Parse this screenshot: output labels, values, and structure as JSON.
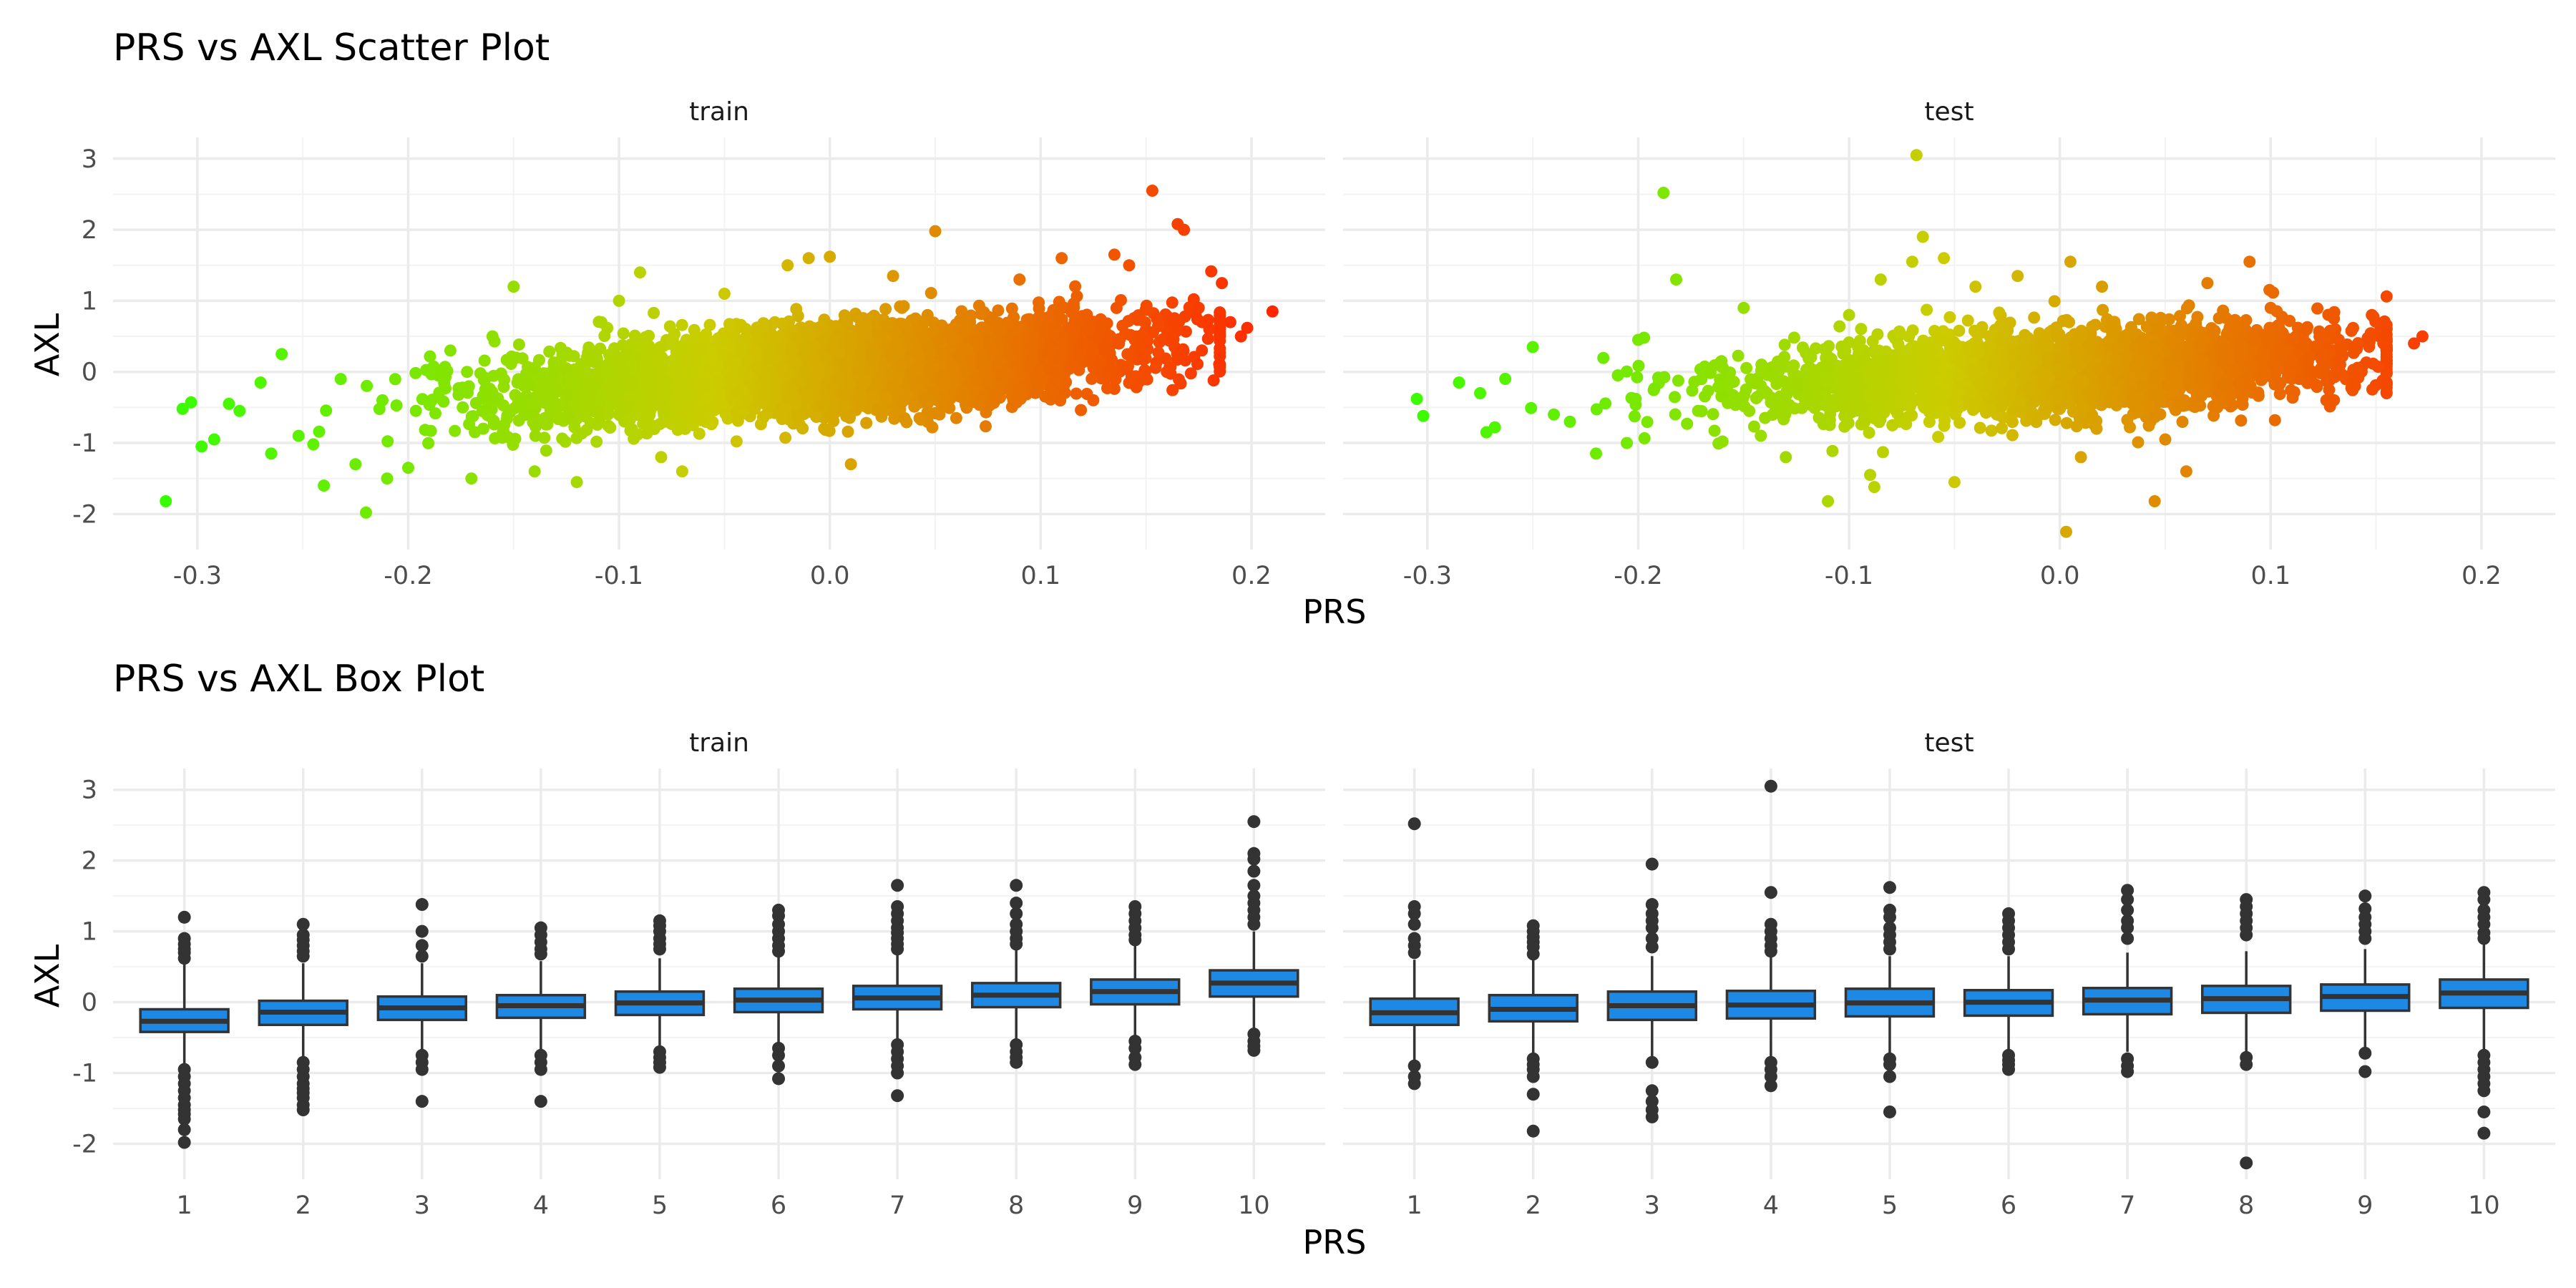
{
  "chart_data": [
    {
      "type": "scatter",
      "title": "PRS vs AXL Scatter Plot",
      "xlabel": "PRS",
      "ylabel": "AXL",
      "xlim": [
        -0.34,
        0.235
      ],
      "ylim": [
        -2.5,
        3.3
      ],
      "xticks": [
        -0.3,
        -0.2,
        -0.1,
        0.0,
        0.1,
        0.2
      ],
      "xtick_labels": [
        "-0.3",
        "-0.2",
        "-0.1",
        "0.0",
        "0.1",
        "0.2"
      ],
      "yticks": [
        -2,
        -1,
        0,
        1,
        2,
        3
      ],
      "ytick_labels": [
        "-2",
        "-1",
        "0",
        "1",
        "2",
        "3"
      ],
      "color_scale": {
        "low": "#33ff00",
        "mid": "#cccc00",
        "high": "#ff2600",
        "mapped_to": "PRS"
      },
      "grid": true,
      "facets": [
        {
          "label": "train",
          "trend": {
            "intercept": 0.02,
            "slope": 2.4
          },
          "points": [
            [
              -0.315,
              -1.82
            ],
            [
              -0.307,
              -0.52
            ],
            [
              -0.303,
              -0.43
            ],
            [
              -0.298,
              -1.05
            ],
            [
              -0.292,
              -0.95
            ],
            [
              -0.285,
              -0.45
            ],
            [
              -0.28,
              -0.55
            ],
            [
              -0.27,
              -0.15
            ],
            [
              -0.265,
              -1.15
            ],
            [
              -0.26,
              0.25
            ],
            [
              -0.252,
              -0.9
            ],
            [
              -0.245,
              -1.02
            ],
            [
              -0.24,
              -1.6
            ],
            [
              -0.232,
              -0.1
            ],
            [
              -0.225,
              -1.3
            ],
            [
              -0.22,
              -1.98
            ],
            [
              -0.21,
              -1.5
            ],
            [
              -0.2,
              -1.35
            ],
            [
              -0.18,
              0.3
            ],
            [
              -0.17,
              -1.5
            ],
            [
              -0.16,
              0.5
            ],
            [
              -0.15,
              1.2
            ],
            [
              -0.14,
              -1.4
            ],
            [
              -0.12,
              -1.55
            ],
            [
              -0.1,
              1.0
            ],
            [
              -0.09,
              1.4
            ],
            [
              -0.08,
              -1.2
            ],
            [
              -0.07,
              -1.4
            ],
            [
              -0.05,
              1.1
            ],
            [
              -0.02,
              1.5
            ],
            [
              -0.01,
              1.6
            ],
            [
              0.0,
              1.62
            ],
            [
              0.01,
              -1.3
            ],
            [
              0.03,
              1.35
            ],
            [
              0.05,
              1.98
            ],
            [
              0.06,
              -0.65
            ],
            [
              0.09,
              1.3
            ],
            [
              0.11,
              1.6
            ],
            [
              0.125,
              -0.4
            ],
            [
              0.135,
              1.65
            ],
            [
              0.142,
              1.5
            ],
            [
              0.153,
              2.55
            ],
            [
              0.165,
              2.08
            ],
            [
              0.168,
              2.0
            ],
            [
              0.175,
              0.9
            ],
            [
              0.18,
              0.6
            ],
            [
              0.186,
              1.25
            ],
            [
              0.19,
              0.7
            ],
            [
              0.195,
              0.5
            ],
            [
              0.198,
              0.62
            ],
            [
              0.21,
              0.85
            ]
          ]
        },
        {
          "label": "test",
          "trend": {
            "intercept": 0.01,
            "slope": 1.6
          },
          "points": [
            [
              -0.305,
              -0.38
            ],
            [
              -0.302,
              -0.62
            ],
            [
              -0.285,
              -0.15
            ],
            [
              -0.275,
              -0.3
            ],
            [
              -0.272,
              -0.85
            ],
            [
              -0.268,
              -0.78
            ],
            [
              -0.25,
              0.35
            ],
            [
              -0.24,
              -0.6
            ],
            [
              -0.22,
              -1.15
            ],
            [
              -0.2,
              0.45
            ],
            [
              -0.188,
              2.52
            ],
            [
              -0.182,
              1.3
            ],
            [
              -0.16,
              -0.98
            ],
            [
              -0.15,
              0.9
            ],
            [
              -0.13,
              -1.2
            ],
            [
              -0.11,
              -1.82
            ],
            [
              -0.1,
              0.8
            ],
            [
              -0.09,
              -1.45
            ],
            [
              -0.088,
              -1.62
            ],
            [
              -0.085,
              1.3
            ],
            [
              -0.07,
              1.55
            ],
            [
              -0.068,
              3.05
            ],
            [
              -0.065,
              1.9
            ],
            [
              -0.055,
              1.6
            ],
            [
              -0.05,
              -1.55
            ],
            [
              -0.04,
              1.2
            ],
            [
              -0.02,
              1.35
            ],
            [
              0.005,
              1.55
            ],
            [
              0.01,
              -1.2
            ],
            [
              0.003,
              -2.25
            ],
            [
              0.02,
              1.2
            ],
            [
              0.045,
              -1.82
            ],
            [
              0.05,
              -0.95
            ],
            [
              0.06,
              -1.4
            ],
            [
              0.07,
              1.25
            ],
            [
              0.09,
              1.55
            ],
            [
              0.1,
              0.9
            ],
            [
              0.13,
              0.75
            ],
            [
              0.14,
              -0.2
            ],
            [
              0.148,
              0.8
            ],
            [
              0.168,
              0.4
            ],
            [
              0.172,
              0.5
            ]
          ]
        }
      ]
    },
    {
      "type": "box",
      "title": "PRS vs AXL Box Plot",
      "xlabel": "PRS",
      "ylabel": "AXL",
      "categories": [
        "1",
        "2",
        "3",
        "4",
        "5",
        "6",
        "7",
        "8",
        "9",
        "10"
      ],
      "ylim": [
        -2.5,
        3.3
      ],
      "yticks": [
        -2,
        -1,
        0,
        1,
        2,
        3
      ],
      "ytick_labels": [
        "-2",
        "-1",
        "0",
        "1",
        "2",
        "3"
      ],
      "fill": "#1e88e5",
      "grid": true,
      "facets": [
        {
          "label": "train",
          "boxes": [
            {
              "q1": -0.42,
              "median": -0.27,
              "q3": -0.1,
              "lo": -0.88,
              "hi": 0.55,
              "outliers": [
                1.2,
                0.9,
                0.82,
                0.75,
                0.7,
                0.62,
                -0.95,
                -1.05,
                -1.15,
                -1.25,
                -1.35,
                -1.45,
                -1.52,
                -1.58,
                -1.65,
                -1.8,
                -1.98
              ]
            },
            {
              "q1": -0.32,
              "median": -0.14,
              "q3": 0.02,
              "lo": -0.78,
              "hi": 0.55,
              "outliers": [
                1.1,
                0.95,
                0.88,
                0.8,
                0.72,
                0.65,
                -0.85,
                -0.95,
                -1.05,
                -1.15,
                -1.22,
                -1.28,
                -1.35,
                -1.45,
                -1.52
              ]
            },
            {
              "q1": -0.25,
              "median": -0.08,
              "q3": 0.08,
              "lo": -0.7,
              "hi": 0.55,
              "outliers": [
                1.38,
                1.0,
                0.8,
                0.65,
                -0.75,
                -0.85,
                -0.95,
                -1.4
              ]
            },
            {
              "q1": -0.22,
              "median": -0.05,
              "q3": 0.1,
              "lo": -0.68,
              "hi": 0.58,
              "outliers": [
                1.05,
                0.95,
                0.85,
                0.75,
                0.68,
                -0.75,
                -0.85,
                -0.95,
                -1.4
              ]
            },
            {
              "q1": -0.18,
              "median": -0.01,
              "q3": 0.15,
              "lo": -0.63,
              "hi": 0.62,
              "outliers": [
                1.15,
                1.08,
                1.0,
                0.9,
                0.82,
                0.75,
                -0.7,
                -0.78,
                -0.85,
                -0.92
              ]
            },
            {
              "q1": -0.14,
              "median": 0.03,
              "q3": 0.19,
              "lo": -0.6,
              "hi": 0.65,
              "outliers": [
                1.3,
                1.22,
                1.1,
                1.0,
                0.9,
                0.8,
                0.72,
                -0.65,
                -0.75,
                -0.9,
                -1.08
              ]
            },
            {
              "q1": -0.1,
              "median": 0.06,
              "q3": 0.23,
              "lo": -0.55,
              "hi": 0.7,
              "outliers": [
                1.65,
                1.35,
                1.25,
                1.15,
                1.05,
                0.98,
                0.9,
                0.82,
                0.75,
                -0.6,
                -0.7,
                -0.8,
                -0.9,
                -1.0,
                -1.32
              ]
            },
            {
              "q1": -0.07,
              "median": 0.1,
              "q3": 0.27,
              "lo": -0.52,
              "hi": 0.75,
              "outliers": [
                1.65,
                1.4,
                1.25,
                1.1,
                1.0,
                0.9,
                0.82,
                -0.6,
                -0.7,
                -0.78,
                -0.85
              ]
            },
            {
              "q1": -0.03,
              "median": 0.15,
              "q3": 0.32,
              "lo": -0.5,
              "hi": 0.8,
              "outliers": [
                1.35,
                1.25,
                1.15,
                1.05,
                0.95,
                0.88,
                -0.55,
                -0.65,
                -0.78,
                -0.88
              ]
            },
            {
              "q1": 0.08,
              "median": 0.27,
              "q3": 0.45,
              "lo": -0.42,
              "hi": 1.0,
              "outliers": [
                2.55,
                2.1,
                2.02,
                1.85,
                1.65,
                1.5,
                1.4,
                1.3,
                1.2,
                1.1,
                -0.45,
                -0.55,
                -0.62,
                -0.68
              ]
            }
          ]
        },
        {
          "label": "test",
          "boxes": [
            {
              "q1": -0.32,
              "median": -0.15,
              "q3": 0.05,
              "lo": -0.85,
              "hi": 0.6,
              "outliers": [
                2.52,
                1.35,
                1.25,
                1.1,
                0.9,
                0.8,
                0.7,
                -0.9,
                -1.05,
                -1.15
              ]
            },
            {
              "q1": -0.27,
              "median": -0.1,
              "q3": 0.1,
              "lo": -0.78,
              "hi": 0.6,
              "outliers": [
                1.08,
                1.0,
                0.92,
                0.85,
                0.78,
                0.68,
                -0.8,
                -0.88,
                -0.95,
                -1.05,
                -1.3,
                -1.82
              ]
            },
            {
              "q1": -0.25,
              "median": -0.05,
              "q3": 0.15,
              "lo": -0.8,
              "hi": 0.65,
              "outliers": [
                1.95,
                1.38,
                1.25,
                1.15,
                1.05,
                0.9,
                0.78,
                -0.85,
                -1.25,
                -1.4,
                -1.52,
                -1.62
              ]
            },
            {
              "q1": -0.23,
              "median": -0.04,
              "q3": 0.16,
              "lo": -0.78,
              "hi": 0.65,
              "outliers": [
                3.05,
                1.55,
                1.1,
                1.0,
                0.9,
                0.8,
                0.72,
                -0.85,
                -0.95,
                -1.05,
                -1.18
              ]
            },
            {
              "q1": -0.2,
              "median": -0.01,
              "q3": 0.19,
              "lo": -0.75,
              "hi": 0.65,
              "outliers": [
                1.62,
                1.3,
                1.2,
                1.05,
                0.95,
                0.85,
                0.75,
                -0.8,
                -0.88,
                -1.05,
                -1.55
              ]
            },
            {
              "q1": -0.19,
              "median": 0.0,
              "q3": 0.17,
              "lo": -0.68,
              "hi": 0.65,
              "outliers": [
                1.25,
                1.15,
                1.05,
                0.95,
                0.85,
                0.75,
                -0.75,
                -0.82,
                -0.88,
                -0.95
              ]
            },
            {
              "q1": -0.17,
              "median": 0.03,
              "q3": 0.2,
              "lo": -0.7,
              "hi": 0.7,
              "outliers": [
                1.58,
                1.45,
                1.3,
                1.15,
                1.05,
                0.9,
                -0.8,
                -0.9,
                -0.98
              ]
            },
            {
              "q1": -0.15,
              "median": 0.05,
              "q3": 0.23,
              "lo": -0.72,
              "hi": 0.72,
              "outliers": [
                1.45,
                1.35,
                1.25,
                1.15,
                1.05,
                0.95,
                -0.78,
                -0.88,
                -2.27
              ]
            },
            {
              "q1": -0.12,
              "median": 0.08,
              "q3": 0.25,
              "lo": -0.65,
              "hi": 0.75,
              "outliers": [
                1.5,
                1.32,
                1.2,
                1.1,
                1.0,
                0.9,
                -0.72,
                -0.98
              ]
            },
            {
              "q1": -0.08,
              "median": 0.13,
              "q3": 0.32,
              "lo": -0.7,
              "hi": 0.85,
              "outliers": [
                1.55,
                1.45,
                1.3,
                1.2,
                1.1,
                0.98,
                0.9,
                -0.75,
                -0.85,
                -0.95,
                -1.05,
                -1.15,
                -1.25,
                -1.55,
                -1.85
              ]
            }
          ]
        }
      ]
    }
  ]
}
